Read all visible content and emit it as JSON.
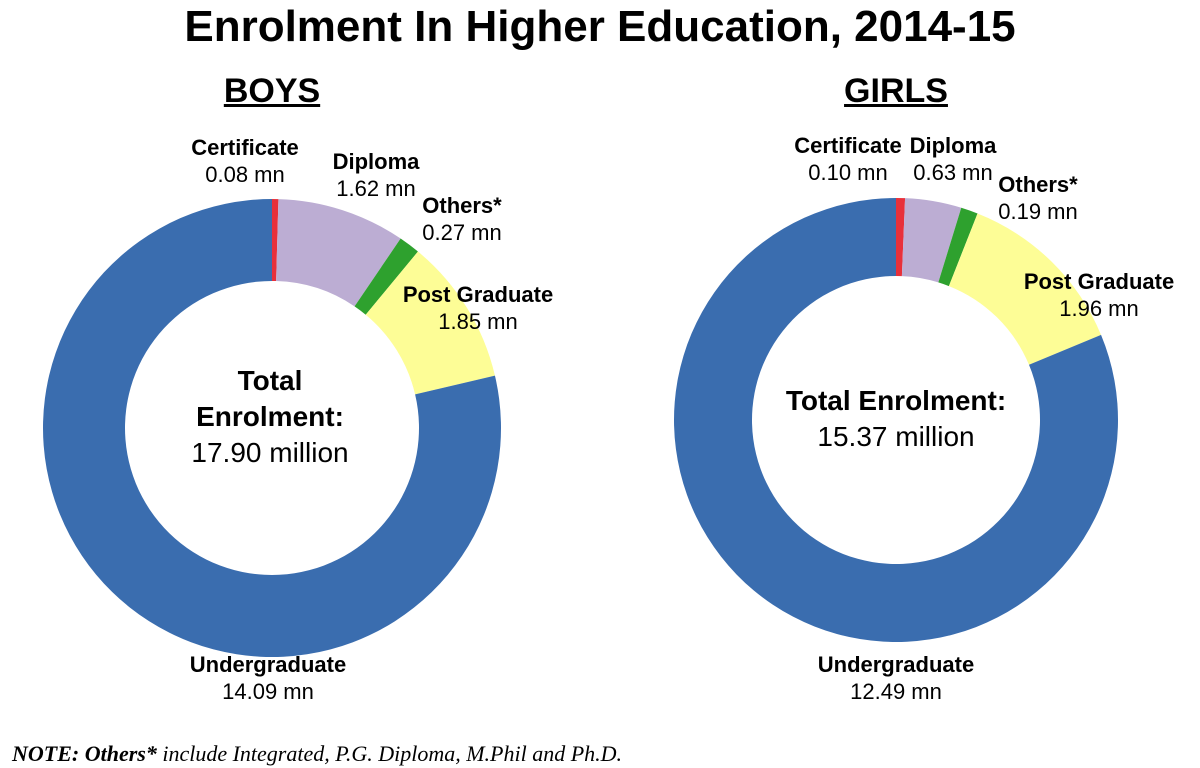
{
  "title": "Enrolment In Higher Education, 2014-15",
  "note": {
    "prefix": "NOTE: Others*",
    "text": " include Integrated, P.G. Diploma, M.Phil and Ph.D."
  },
  "colors": {
    "Certificate": "#e8303a",
    "Diploma": "#bcadd3",
    "Others*": "#2ea12e",
    "Post Graduate": "#fdfd96",
    "Undergraduate": "#3a6daf"
  },
  "boys": {
    "heading": "BOYS",
    "center_line1": "Total",
    "center_line2": "Enrolment:",
    "center_value": "17.90 million",
    "labels": {
      "certificate": {
        "name": "Certificate",
        "value": "0.08 mn"
      },
      "diploma": {
        "name": "Diploma",
        "value": "1.62 mn"
      },
      "others": {
        "name": "Others*",
        "value": "0.27 mn"
      },
      "post_graduate": {
        "name": "Post Graduate",
        "value": "1.85 mn"
      },
      "undergraduate": {
        "name": "Undergraduate",
        "value": "14.09 mn"
      }
    }
  },
  "girls": {
    "heading": "GIRLS",
    "center_line1": "Total Enrolment:",
    "center_value": "15.37 million",
    "labels": {
      "certificate": {
        "name": "Certificate",
        "value": "0.10 mn"
      },
      "diploma": {
        "name": "Diploma",
        "value": "0.63 mn"
      },
      "others": {
        "name": "Others*",
        "value": "0.19 mn"
      },
      "post_graduate": {
        "name": "Post Graduate",
        "value": "1.96 mn"
      },
      "undergraduate": {
        "name": "Undergraduate",
        "value": "12.49 mn"
      }
    }
  },
  "chart_data": [
    {
      "type": "pie",
      "subtype": "donut",
      "title": "BOYS",
      "center_text": "Total Enrolment: 17.90 million",
      "unit": "million",
      "categories": [
        "Certificate",
        "Diploma",
        "Others*",
        "Post Graduate",
        "Undergraduate"
      ],
      "values": [
        0.08,
        1.62,
        0.27,
        1.85,
        14.09
      ],
      "colors": [
        "#e8303a",
        "#bcadd3",
        "#2ea12e",
        "#fdfd96",
        "#3a6daf"
      ],
      "start_angle": "12 o'clock, clockwise",
      "total": 17.9
    },
    {
      "type": "pie",
      "subtype": "donut",
      "title": "GIRLS",
      "center_text": "Total Enrolment: 15.37 million",
      "unit": "million",
      "categories": [
        "Certificate",
        "Diploma",
        "Others*",
        "Post Graduate",
        "Undergraduate"
      ],
      "values": [
        0.1,
        0.63,
        0.19,
        1.96,
        12.49
      ],
      "colors": [
        "#e8303a",
        "#bcadd3",
        "#2ea12e",
        "#fdfd96",
        "#3a6daf"
      ],
      "start_angle": "12 o'clock, clockwise",
      "total": 15.37
    }
  ]
}
